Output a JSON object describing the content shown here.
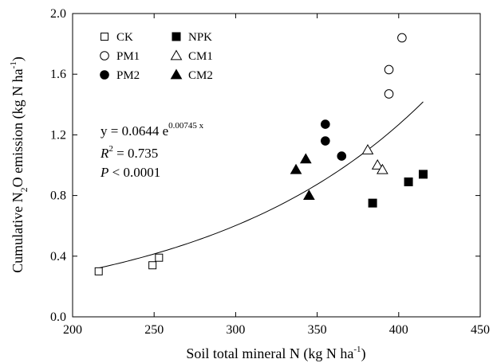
{
  "chart_data": {
    "type": "scatter",
    "xlabel": {
      "text": "Soil total mineral N (kg N ha",
      "sup": "-1",
      "close": ")"
    },
    "ylabel": {
      "pre": "Cumulative N",
      "sub": "2",
      "mid": "O emission (kg N ha",
      "sup": "-1",
      "close": ")"
    },
    "xlim": [
      200,
      450
    ],
    "ylim": [
      0.0,
      2.0
    ],
    "x_ticks": [
      200,
      250,
      300,
      350,
      400,
      450
    ],
    "y_ticks": [
      0.0,
      0.4,
      0.8,
      1.2,
      1.6,
      2.0
    ],
    "x_tick_labels": [
      "200",
      "250",
      "300",
      "350",
      "400",
      "450"
    ],
    "y_tick_labels": [
      "0.0",
      "0.4",
      "0.8",
      "1.2",
      "1.6",
      "2.0"
    ],
    "grid": false,
    "legend_position": "top-left",
    "series": [
      {
        "name": "CK",
        "marker": "square-open",
        "points": [
          [
            216,
            0.3
          ],
          [
            249,
            0.34
          ],
          [
            253,
            0.39
          ]
        ]
      },
      {
        "name": "NPK",
        "marker": "square-filled",
        "points": [
          [
            384,
            0.75
          ],
          [
            406,
            0.89
          ],
          [
            415,
            0.94
          ]
        ]
      },
      {
        "name": "PM1",
        "marker": "circle-open",
        "points": [
          [
            394,
            1.47
          ],
          [
            394,
            1.63
          ],
          [
            402,
            1.84
          ]
        ]
      },
      {
        "name": "CM1",
        "marker": "triangle-open",
        "points": [
          [
            381,
            1.1
          ],
          [
            387,
            1.0
          ],
          [
            390,
            0.97
          ]
        ]
      },
      {
        "name": "PM2",
        "marker": "circle-filled",
        "points": [
          [
            355,
            1.27
          ],
          [
            355,
            1.16
          ],
          [
            365,
            1.06
          ]
        ]
      },
      {
        "name": "CM2",
        "marker": "triangle-filled",
        "points": [
          [
            337,
            0.97
          ],
          [
            343,
            1.04
          ],
          [
            345,
            0.8
          ]
        ]
      }
    ],
    "fit": {
      "a": 0.0644,
      "b": 0.00745,
      "x_range": [
        216,
        415
      ]
    },
    "annotation": {
      "equation_base": "y = 0.0644 e",
      "equation_exp": "0.00745 x",
      "r2_label": "R",
      "r2_sup": "2",
      "r2_value": " = 0.735",
      "p_label": "P",
      "p_value": " < 0.0001"
    }
  }
}
